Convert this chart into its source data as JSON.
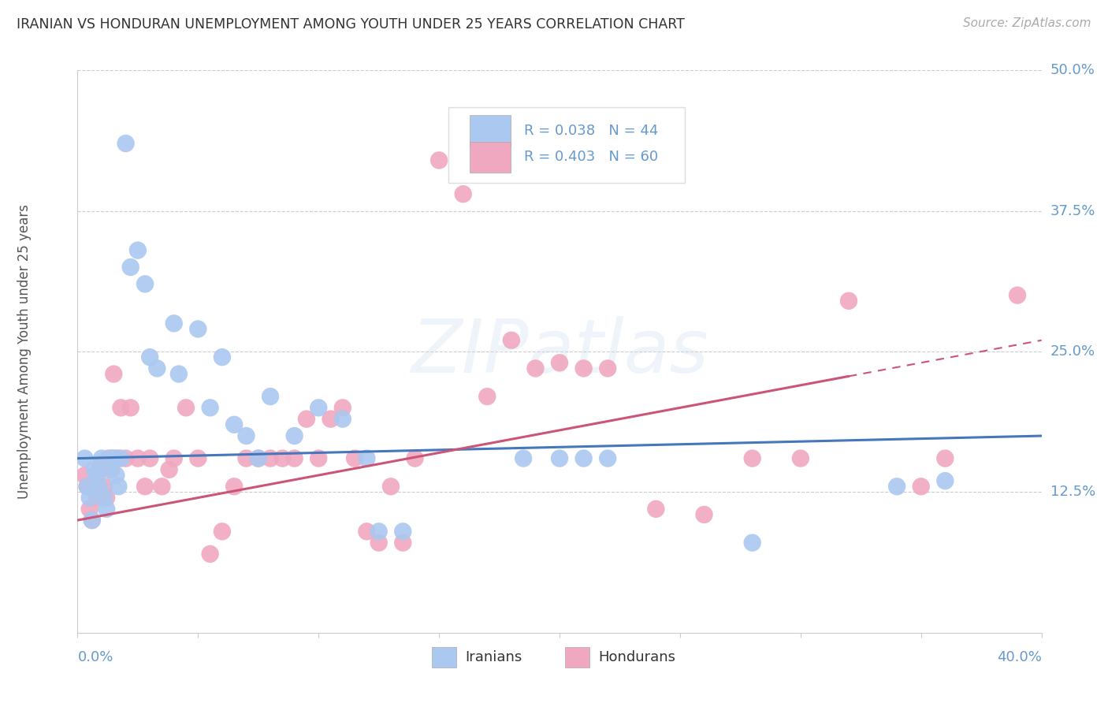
{
  "title": "IRANIAN VS HONDURAN UNEMPLOYMENT AMONG YOUTH UNDER 25 YEARS CORRELATION CHART",
  "source": "Source: ZipAtlas.com",
  "ylabel": "Unemployment Among Youth under 25 years",
  "watermark": "ZIPatlas",
  "iranian_color": "#aac8f0",
  "honduran_color": "#f0a8c0",
  "iranian_line_color": "#4477bb",
  "honduran_line_color": "#cc5577",
  "background_color": "#ffffff",
  "grid_color": "#cccccc",
  "title_color": "#333333",
  "tick_color": "#6699cc",
  "ytick_vals": [
    0.125,
    0.25,
    0.375,
    0.5
  ],
  "ytick_labels": [
    "12.5%",
    "25.0%",
    "37.5%",
    "50.0%"
  ],
  "x_min": 0.0,
  "x_max": 0.4,
  "y_min": 0.0,
  "y_max": 0.5,
  "iranians_scatter": [
    [
      0.003,
      0.155
    ],
    [
      0.004,
      0.13
    ],
    [
      0.005,
      0.12
    ],
    [
      0.006,
      0.1
    ],
    [
      0.007,
      0.145
    ],
    [
      0.008,
      0.14
    ],
    [
      0.009,
      0.13
    ],
    [
      0.01,
      0.155
    ],
    [
      0.011,
      0.12
    ],
    [
      0.012,
      0.11
    ],
    [
      0.013,
      0.145
    ],
    [
      0.014,
      0.155
    ],
    [
      0.015,
      0.155
    ],
    [
      0.016,
      0.14
    ],
    [
      0.017,
      0.13
    ],
    [
      0.018,
      0.155
    ],
    [
      0.02,
      0.435
    ],
    [
      0.022,
      0.325
    ],
    [
      0.025,
      0.34
    ],
    [
      0.028,
      0.31
    ],
    [
      0.03,
      0.245
    ],
    [
      0.033,
      0.235
    ],
    [
      0.04,
      0.275
    ],
    [
      0.042,
      0.23
    ],
    [
      0.05,
      0.27
    ],
    [
      0.055,
      0.2
    ],
    [
      0.06,
      0.245
    ],
    [
      0.065,
      0.185
    ],
    [
      0.07,
      0.175
    ],
    [
      0.075,
      0.155
    ],
    [
      0.08,
      0.21
    ],
    [
      0.09,
      0.175
    ],
    [
      0.1,
      0.2
    ],
    [
      0.11,
      0.19
    ],
    [
      0.12,
      0.155
    ],
    [
      0.125,
      0.09
    ],
    [
      0.135,
      0.09
    ],
    [
      0.185,
      0.155
    ],
    [
      0.2,
      0.155
    ],
    [
      0.21,
      0.155
    ],
    [
      0.22,
      0.155
    ],
    [
      0.28,
      0.08
    ],
    [
      0.34,
      0.13
    ],
    [
      0.36,
      0.135
    ]
  ],
  "hondurans_scatter": [
    [
      0.003,
      0.14
    ],
    [
      0.004,
      0.13
    ],
    [
      0.005,
      0.11
    ],
    [
      0.006,
      0.1
    ],
    [
      0.007,
      0.13
    ],
    [
      0.008,
      0.12
    ],
    [
      0.009,
      0.145
    ],
    [
      0.01,
      0.15
    ],
    [
      0.011,
      0.13
    ],
    [
      0.012,
      0.12
    ],
    [
      0.013,
      0.155
    ],
    [
      0.014,
      0.145
    ],
    [
      0.015,
      0.23
    ],
    [
      0.016,
      0.155
    ],
    [
      0.017,
      0.155
    ],
    [
      0.018,
      0.2
    ],
    [
      0.02,
      0.155
    ],
    [
      0.022,
      0.2
    ],
    [
      0.025,
      0.155
    ],
    [
      0.028,
      0.13
    ],
    [
      0.03,
      0.155
    ],
    [
      0.035,
      0.13
    ],
    [
      0.038,
      0.145
    ],
    [
      0.04,
      0.155
    ],
    [
      0.045,
      0.2
    ],
    [
      0.05,
      0.155
    ],
    [
      0.055,
      0.07
    ],
    [
      0.06,
      0.09
    ],
    [
      0.065,
      0.13
    ],
    [
      0.07,
      0.155
    ],
    [
      0.075,
      0.155
    ],
    [
      0.08,
      0.155
    ],
    [
      0.085,
      0.155
    ],
    [
      0.09,
      0.155
    ],
    [
      0.095,
      0.19
    ],
    [
      0.1,
      0.155
    ],
    [
      0.105,
      0.19
    ],
    [
      0.11,
      0.2
    ],
    [
      0.115,
      0.155
    ],
    [
      0.12,
      0.09
    ],
    [
      0.125,
      0.08
    ],
    [
      0.13,
      0.13
    ],
    [
      0.135,
      0.08
    ],
    [
      0.14,
      0.155
    ],
    [
      0.15,
      0.42
    ],
    [
      0.16,
      0.39
    ],
    [
      0.17,
      0.21
    ],
    [
      0.18,
      0.26
    ],
    [
      0.19,
      0.235
    ],
    [
      0.2,
      0.24
    ],
    [
      0.21,
      0.235
    ],
    [
      0.22,
      0.235
    ],
    [
      0.24,
      0.11
    ],
    [
      0.26,
      0.105
    ],
    [
      0.28,
      0.155
    ],
    [
      0.3,
      0.155
    ],
    [
      0.32,
      0.295
    ],
    [
      0.35,
      0.13
    ],
    [
      0.36,
      0.155
    ],
    [
      0.39,
      0.3
    ]
  ]
}
